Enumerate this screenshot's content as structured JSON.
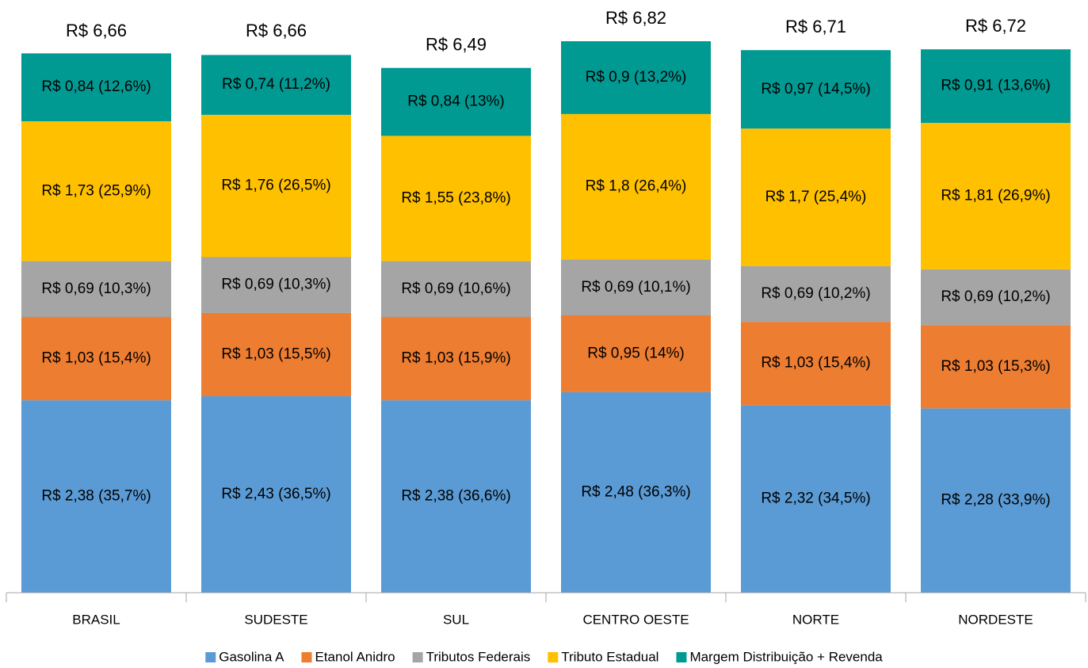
{
  "chart_data": {
    "type": "stacked-bar",
    "categories": [
      "BRASIL",
      "SUDESTE",
      "SUL",
      "CENTRO OESTE",
      "NORTE",
      "NORDESTE"
    ],
    "series": [
      {
        "name": "Gasolina A",
        "color": "#5b9bd5",
        "values": [
          2.38,
          2.43,
          2.38,
          2.48,
          2.32,
          2.28
        ],
        "value_labels": [
          "R$ 2,38 (35,7%)",
          "R$ 2,43 (36,5%)",
          "R$ 2,38 (36,6%)",
          "R$ 2,48 (36,3%)",
          "R$ 2,32 (34,5%)",
          "R$ 2,28 (33,9%)"
        ]
      },
      {
        "name": "Etanol Anidro",
        "color": "#ed7d31",
        "values": [
          1.03,
          1.03,
          1.03,
          0.95,
          1.03,
          1.03
        ],
        "value_labels": [
          "R$ 1,03 (15,4%)",
          "R$ 1,03 (15,5%)",
          "R$ 1,03 (15,9%)",
          "R$ 0,95 (14%)",
          "R$ 1,03 (15,4%)",
          "R$ 1,03 (15,3%)"
        ]
      },
      {
        "name": "Tributos Federais",
        "color": "#a5a5a5",
        "values": [
          0.69,
          0.69,
          0.69,
          0.69,
          0.69,
          0.69
        ],
        "value_labels": [
          "R$ 0,69 (10,3%)",
          "R$ 0,69 (10,3%)",
          "R$ 0,69 (10,6%)",
          "R$ 0,69 (10,1%)",
          "R$ 0,69 (10,2%)",
          "R$ 0,69 (10,2%)"
        ]
      },
      {
        "name": "Tributo Estadual",
        "color": "#ffc000",
        "values": [
          1.73,
          1.76,
          1.55,
          1.8,
          1.7,
          1.81
        ],
        "value_labels": [
          "R$ 1,73 (25,9%)",
          "R$ 1,76 (26,5%)",
          "R$ 1,55 (23,8%)",
          "R$ 1,8 (26,4%)",
          "R$ 1,7 (25,4%)",
          "R$ 1,81 (26,9%)"
        ]
      },
      {
        "name": "Margem Distribuição + Revenda",
        "color": "#009a93",
        "values": [
          0.84,
          0.74,
          0.84,
          0.9,
          0.97,
          0.91
        ],
        "value_labels": [
          "R$ 0,84 (12,6%)",
          "R$ 0,74 (11,2%)",
          "R$ 0,84 (13%)",
          "R$ 0,9 (13,2%)",
          "R$ 0,97 (14,5%)",
          "R$ 0,91 (13,6%)"
        ]
      }
    ],
    "totals": {
      "values": [
        6.66,
        6.66,
        6.49,
        6.82,
        6.71,
        6.72
      ],
      "value_labels": [
        "R$ 6,66",
        "R$ 6,66",
        "R$ 6,49",
        "R$ 6,82",
        "R$ 6,71",
        "R$ 6,72"
      ]
    },
    "ylim": [
      0,
      7.33
    ],
    "legend": "bottom"
  }
}
